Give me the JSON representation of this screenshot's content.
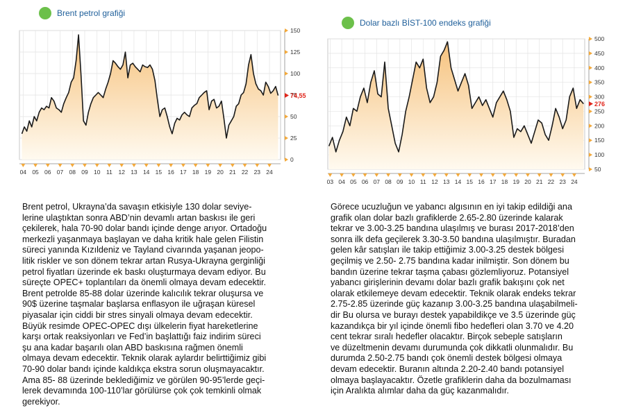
{
  "left_panel": {
    "title": "Brent petrol grafiği",
    "paragraph": "Brent petrol, Ukrayna’da savaşın etkisiyle 130 dolar seviye-\nlerine ulaştıktan sonra ABD’nin devamlı artan baskısı ile geri\nçekilerek, hala 70-90 dolar bandı içinde denge arıyor. Ortadoğu\nmerkezli yaşanmaya başlayan ve daha kritik hale gelen Filistin\nsüreci yanında Kızıldeniz ve Tayland civarında yaşanan jeopo-\nlitik riskler ve son dönem tekrar artan Rusya-Ukrayna gerginliği\npetrol fiyatları üzerinde ek baskı oluşturmaya devam ediyor. Bu\nsüreçte OPEC+ toplantıları da önemli olmaya devam edecektir.\nBrent petrolde 85-88 dolar üzerinde kalıcılık tekrar oluşursa ve\n90$ üzerine taşmalar başlarsa enflasyon ile uğraşan küresel\npiyasalar için ciddi bir stres sinyali olmaya devam edecektir.\nBüyük resimde OPEC-OPEC dışı ülkelerin fiyat hareketlerine\nkarşı ortak reaksiyonları ve Fed’in başlattığı faiz indirim süreci\nşu ana kadar başarılı olan ABD baskısına rağmen önemli\nolmaya devam edecektir. Teknik olarak aylardır belirttiğimiz gibi\n70-90 dolar bandı içinde kaldıkça ekstra sorun oluşmayacaktır.\nAma 85- 88 üzerinde beklediğimiz ve görülen 90-95’lerde geçi-\nlerek devamında 100-110’lar görülürse çok çok temkinli olmak\ngerekiyor."
  },
  "right_panel": {
    "title": "Dolar bazlı BİST-100 endeks grafiği",
    "paragraph": "Görece ucuzluğun ve yabancı algısının en iyi takip edildiği ana\ngrafik olan dolar bazlı grafiklerde 2.65-2.80 üzerinde kalarak\ntekrar ve 3.00-3.25 bandına ulaşılmış ve burası 2017-2018’den\nsonra ilk defa geçilerek 3.30-3.50 bandına ulaşılmıştır. Buradan\ngelen kâr satışları ile takip ettiğimiz 3.00-3.25 destek bölgesi\ngeçilmiş ve 2.50- 2.75 bandına kadar inilmiştir. Son dönem bu\nbandın üzerine tekrar taşma çabası gözlemliyoruz.  Potansiyel\nyabancı girişlerinin devamı dolar bazlı grafik bakışını çok net\nolarak etkilemeye devam edecektir. Teknik olarak endeks tekrar\n2.75-2.85 üzerinde güç kazanıp 3.00-3.25 bandına ulaşabilmeli-\ndir Bu olursa ve burayı destek yapabildikçe ve 3.5 üzerinde güç\nkazandıkça bir yıl içinde önemli fibo hedefleri olan 3.70 ve 4.20\ncent tekrar sıralı hedefler olacaktır. Birçok sebeple satışların\nve düzeltmenin devamı durumunda çok dikkatli olunmalıdır. Bu\ndurumda 2.50-2.75 bandı çok önemli destek bölgesi olmaya\ndevam edecektir. Buranın altında 2.20-2.40 bandı potansiyel\nolmaya başlayacaktır. Özetle grafiklerin daha da bozulmaması\niçin Aralıkta alımlar daha da güç kazanmalıdır."
  },
  "colors": {
    "accent_dot": "#6cc04a",
    "title_blue": "#1f5f9a",
    "marker_red": "#e0251b",
    "tick_orange": "#f3a93b",
    "fill_top": "#f6c27d",
    "fill_bottom": "#fffaf0"
  },
  "chart_data": [
    {
      "type": "area",
      "x_tick_labels": [
        "04",
        "05",
        "06",
        "07",
        "08",
        "09",
        "10",
        "11",
        "12",
        "13",
        "14",
        "15",
        "16",
        "17",
        "18",
        "19",
        "20",
        "21",
        "22",
        "23",
        "24"
      ],
      "x_tick_start": 2004,
      "y_ticks": [
        0,
        25,
        50,
        75,
        100,
        125,
        150
      ],
      "ylim": [
        0,
        150
      ],
      "y_axis_side": "right",
      "grid": true,
      "current_value_label": "74,55",
      "series": [
        {
          "x": [
            2003.9,
            2004.1,
            2004.3,
            2004.5,
            2004.7,
            2004.9,
            2005.1,
            2005.3,
            2005.5,
            2005.7,
            2005.9,
            2006.1,
            2006.3,
            2006.5,
            2006.7,
            2006.9,
            2007.1,
            2007.3,
            2007.5,
            2007.7,
            2007.9,
            2008.1,
            2008.3,
            2008.5,
            2008.7,
            2008.9,
            2009.1,
            2009.3,
            2009.5,
            2009.7,
            2009.9,
            2010.1,
            2010.3,
            2010.5,
            2010.7,
            2010.9,
            2011.1,
            2011.3,
            2011.5,
            2011.7,
            2011.9,
            2012.1,
            2012.3,
            2012.5,
            2012.7,
            2012.9,
            2013.1,
            2013.3,
            2013.5,
            2013.7,
            2013.9,
            2014.1,
            2014.3,
            2014.5,
            2014.7,
            2014.9,
            2015.1,
            2015.3,
            2015.5,
            2015.7,
            2015.9,
            2016.1,
            2016.3,
            2016.5,
            2016.7,
            2016.9,
            2017.1,
            2017.3,
            2017.5,
            2017.7,
            2017.9,
            2018.1,
            2018.3,
            2018.5,
            2018.7,
            2018.9,
            2019.1,
            2019.3,
            2019.5,
            2019.7,
            2019.9,
            2020.1,
            2020.3,
            2020.5,
            2020.7,
            2020.9,
            2021.1,
            2021.3,
            2021.5,
            2021.7,
            2021.9,
            2022.1,
            2022.3,
            2022.5,
            2022.7,
            2022.9,
            2023.1,
            2023.3,
            2023.5,
            2023.7,
            2023.9,
            2024.1,
            2024.3,
            2024.5,
            2024.7
          ],
          "y": [
            30,
            38,
            33,
            45,
            38,
            50,
            45,
            55,
            60,
            58,
            62,
            60,
            72,
            68,
            60,
            58,
            55,
            65,
            72,
            78,
            90,
            95,
            115,
            145,
            98,
            45,
            40,
            55,
            65,
            72,
            75,
            78,
            75,
            72,
            82,
            90,
            100,
            115,
            112,
            108,
            105,
            110,
            125,
            95,
            110,
            112,
            108,
            105,
            102,
            110,
            108,
            107,
            110,
            105,
            92,
            70,
            50,
            58,
            60,
            50,
            38,
            30,
            42,
            48,
            46,
            52,
            55,
            52,
            50,
            60,
            63,
            65,
            72,
            75,
            78,
            80,
            58,
            68,
            70,
            60,
            62,
            68,
            48,
            25,
            40,
            45,
            50,
            62,
            65,
            75,
            78,
            88,
            110,
            122,
            100,
            88,
            82,
            80,
            75,
            90,
            85,
            77,
            80,
            85,
            74.55
          ]
        }
      ]
    },
    {
      "type": "area",
      "x_tick_labels": [
        "03",
        "04",
        "05",
        "06",
        "07",
        "08",
        "09",
        "10",
        "11",
        "12",
        "13",
        "14",
        "15",
        "16",
        "17",
        "18",
        "19",
        "20",
        "21",
        "22",
        "23",
        "24"
      ],
      "x_tick_start": 2003,
      "y_ticks": [
        50,
        100,
        150,
        200,
        250,
        300,
        350,
        400,
        450,
        500
      ],
      "ylim": [
        50,
        500
      ],
      "y_axis_side": "right",
      "grid": true,
      "current_value_label": "276",
      "series": [
        {
          "x": [
            2002.9,
            2003.2,
            2003.5,
            2003.8,
            2004.1,
            2004.4,
            2004.7,
            2005.0,
            2005.3,
            2005.6,
            2005.9,
            2006.2,
            2006.5,
            2006.8,
            2007.1,
            2007.4,
            2007.7,
            2008.0,
            2008.3,
            2008.6,
            2008.9,
            2009.2,
            2009.5,
            2009.8,
            2010.1,
            2010.4,
            2010.7,
            2011.0,
            2011.3,
            2011.6,
            2011.9,
            2012.2,
            2012.5,
            2012.8,
            2013.1,
            2013.4,
            2013.7,
            2014.0,
            2014.3,
            2014.6,
            2014.9,
            2015.2,
            2015.5,
            2015.8,
            2016.1,
            2016.4,
            2016.7,
            2017.0,
            2017.3,
            2017.6,
            2017.9,
            2018.2,
            2018.5,
            2018.8,
            2019.1,
            2019.4,
            2019.7,
            2020.0,
            2020.3,
            2020.6,
            2020.9,
            2021.2,
            2021.5,
            2021.8,
            2022.1,
            2022.4,
            2022.7,
            2023.0,
            2023.3,
            2023.6,
            2023.9,
            2024.2,
            2024.5,
            2024.8
          ],
          "y": [
            130,
            160,
            110,
            150,
            180,
            230,
            200,
            260,
            250,
            300,
            330,
            280,
            350,
            390,
            310,
            300,
            420,
            260,
            200,
            140,
            110,
            170,
            250,
            300,
            360,
            420,
            400,
            430,
            330,
            280,
            300,
            350,
            440,
            460,
            490,
            400,
            360,
            320,
            350,
            380,
            340,
            260,
            280,
            300,
            270,
            290,
            260,
            230,
            280,
            300,
            320,
            290,
            250,
            160,
            190,
            180,
            200,
            170,
            140,
            180,
            220,
            210,
            170,
            150,
            200,
            260,
            230,
            190,
            220,
            300,
            330,
            260,
            290,
            276
          ]
        }
      ]
    }
  ]
}
